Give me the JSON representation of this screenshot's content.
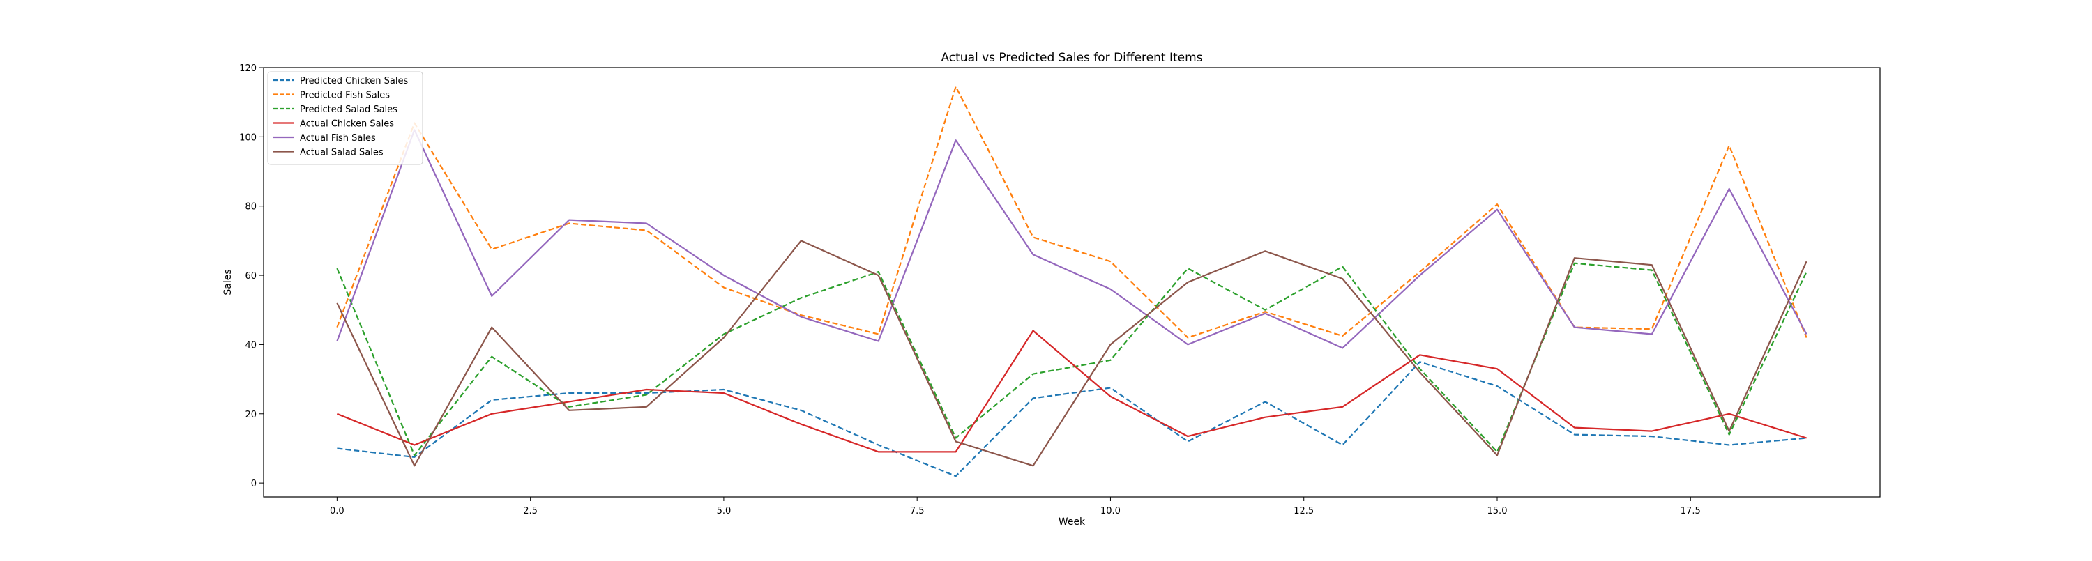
{
  "chart_data": {
    "type": "line",
    "title": "Actual vs Predicted Sales for Different Items",
    "xlabel": "Week",
    "ylabel": "Sales",
    "xlim": [
      -0.95,
      19.95
    ],
    "ylim": [
      -4,
      120
    ],
    "xticks": [
      0.0,
      2.5,
      5.0,
      7.5,
      10.0,
      12.5,
      15.0,
      17.5
    ],
    "xtick_labels": [
      "0.0",
      "2.5",
      "5.0",
      "7.5",
      "10.0",
      "12.5",
      "15.0",
      "17.5"
    ],
    "yticks": [
      0,
      20,
      40,
      60,
      80,
      100,
      120
    ],
    "ytick_labels": [
      "0",
      "20",
      "40",
      "60",
      "80",
      "100",
      "120"
    ],
    "grid": false,
    "legend_position": "top-left",
    "x": [
      0,
      1,
      2,
      3,
      4,
      5,
      6,
      7,
      8,
      9,
      10,
      11,
      12,
      13,
      14,
      15,
      16,
      17,
      18,
      19
    ],
    "series": [
      {
        "name": "Predicted Chicken Sales",
        "color": "#1f77b4",
        "style": "dashed",
        "values": [
          10,
          7.5,
          24,
          26,
          26,
          27,
          21,
          11,
          2,
          24.5,
          27.5,
          12,
          23.5,
          11,
          35,
          28,
          14,
          13.5,
          11,
          13
        ]
      },
      {
        "name": "Predicted Fish Sales",
        "color": "#ff7f0e",
        "style": "dashed",
        "values": [
          45,
          104,
          67.5,
          75,
          73,
          56.5,
          48.5,
          43,
          114.5,
          71,
          64,
          42,
          49.5,
          42.5,
          61,
          80.5,
          45,
          44.5,
          97.5,
          42
        ]
      },
      {
        "name": "Predicted Salad Sales",
        "color": "#2ca02c",
        "style": "dashed",
        "values": [
          62,
          8,
          36.5,
          22,
          25.5,
          43,
          53.5,
          61,
          13,
          31.5,
          35.5,
          62,
          50,
          62.5,
          33,
          9,
          63.5,
          61.5,
          14,
          61
        ]
      },
      {
        "name": "Actual Chicken Sales",
        "color": "#d62728",
        "style": "solid",
        "values": [
          20,
          11,
          20,
          23.5,
          27,
          26,
          17,
          9,
          9,
          44,
          25,
          13.5,
          19,
          22,
          37,
          33,
          16,
          15,
          20,
          13
        ]
      },
      {
        "name": "Actual Fish Sales",
        "color": "#9467bd",
        "style": "solid",
        "values": [
          41,
          102,
          54,
          76,
          75,
          60,
          48,
          41,
          99,
          66,
          56,
          40,
          49,
          39,
          60,
          79,
          45,
          43,
          85,
          43
        ]
      },
      {
        "name": "Actual Salad Sales",
        "color": "#8c564b",
        "style": "solid",
        "values": [
          52,
          5,
          45,
          21,
          22,
          42,
          70,
          60,
          12,
          5,
          40,
          58,
          67,
          59,
          32,
          8,
          65,
          63,
          15,
          64
        ]
      }
    ]
  }
}
